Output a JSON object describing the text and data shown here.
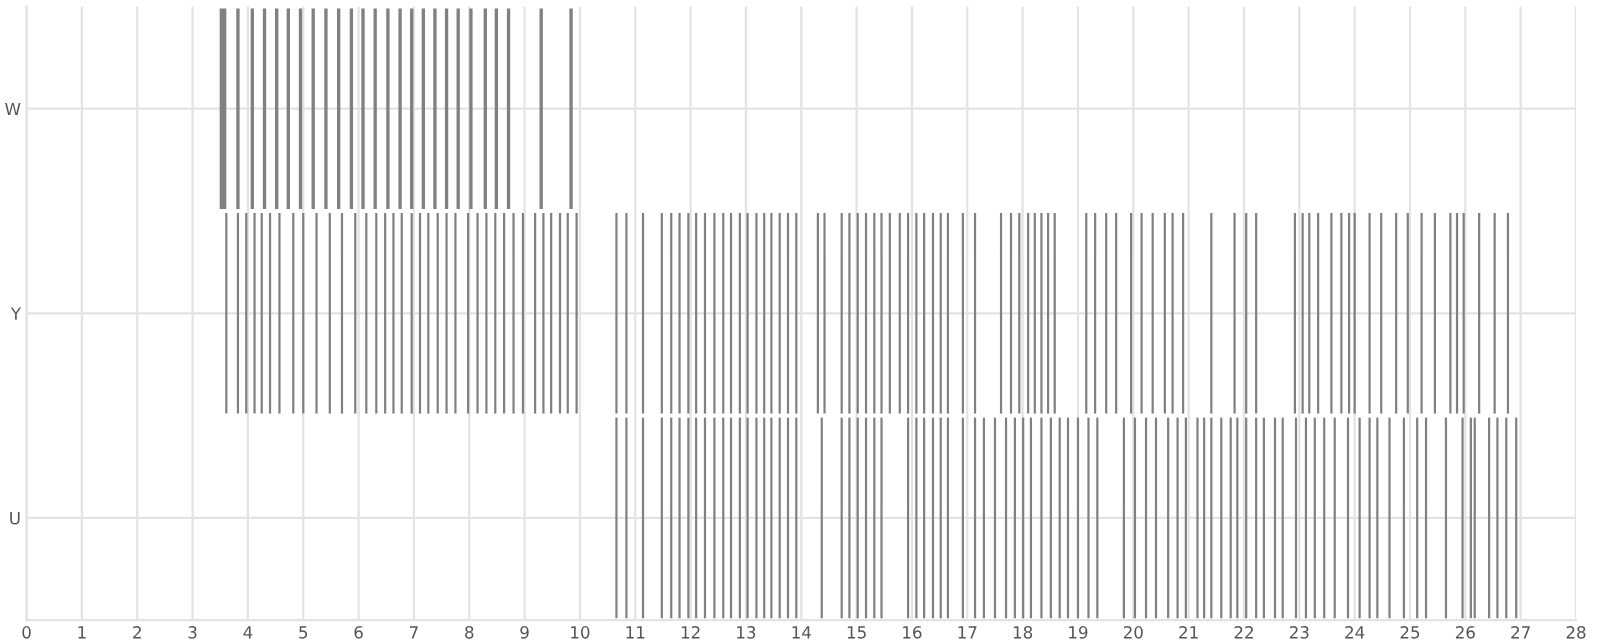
{
  "chart_data": {
    "type": "bar",
    "orientation": "horizontal",
    "grid": true,
    "xlim": [
      0,
      28
    ],
    "xticks": [
      0,
      1,
      2,
      3,
      4,
      5,
      6,
      7,
      8,
      9,
      10,
      11,
      12,
      13,
      14,
      15,
      16,
      17,
      18,
      19,
      20,
      21,
      22,
      23,
      24,
      25,
      26,
      27,
      28
    ],
    "categories": [
      "W",
      "Y",
      "U"
    ],
    "series": [
      {
        "color": "#808080",
        "x": [
          "W",
          "W",
          "W",
          "W",
          "W",
          "W",
          "W",
          "W",
          "W",
          "W",
          "W",
          "W",
          "W",
          "W",
          "W",
          "W",
          "W",
          "W",
          "W",
          "W",
          "W",
          "W",
          "W",
          "W",
          "W",
          "W"
        ],
        "base": [
          3.49,
          3.79,
          4.05,
          4.27,
          4.49,
          4.7,
          4.92,
          5.15,
          5.38,
          5.61,
          5.84,
          6.05,
          6.27,
          6.5,
          6.72,
          6.93,
          7.14,
          7.35,
          7.56,
          7.77,
          8.0,
          8.26,
          8.46,
          8.68,
          9.27,
          9.81
        ],
        "values": [
          0.12,
          0.06,
          0.06,
          0.06,
          0.06,
          0.06,
          0.06,
          0.06,
          0.06,
          0.06,
          0.06,
          0.06,
          0.06,
          0.06,
          0.06,
          0.06,
          0.06,
          0.06,
          0.06,
          0.06,
          0.06,
          0.06,
          0.06,
          0.06,
          0.06,
          0.06
        ]
      },
      {
        "color": "#808080",
        "x": [
          "Y",
          "Y",
          "Y",
          "Y",
          "Y",
          "Y",
          "Y",
          "Y",
          "Y",
          "Y",
          "Y",
          "Y",
          "Y",
          "Y",
          "Y",
          "Y",
          "Y",
          "Y",
          "Y",
          "Y",
          "Y",
          "Y",
          "Y",
          "Y",
          "Y",
          "Y",
          "Y",
          "Y",
          "Y",
          "Y",
          "Y",
          "Y",
          "Y",
          "Y",
          "Y",
          "Y",
          "Y",
          "Y",
          "Y",
          "Y",
          "Y",
          "Y",
          "Y",
          "Y",
          "Y",
          "Y",
          "Y",
          "Y",
          "Y",
          "Y",
          "Y",
          "Y",
          "Y",
          "Y",
          "Y",
          "Y",
          "Y",
          "Y",
          "Y",
          "Y",
          "Y",
          "Y",
          "Y",
          "Y",
          "Y",
          "Y",
          "Y",
          "Y",
          "Y",
          "Y",
          "Y",
          "Y",
          "Y",
          "Y",
          "Y",
          "Y",
          "Y",
          "Y",
          "Y",
          "Y",
          "Y",
          "Y",
          "Y",
          "Y",
          "Y",
          "Y",
          "Y",
          "Y",
          "Y",
          "Y",
          "Y",
          "Y",
          "Y",
          "Y",
          "Y",
          "Y",
          "Y",
          "Y",
          "Y",
          "Y",
          "Y",
          "Y",
          "Y",
          "Y",
          "Y",
          "Y",
          "Y",
          "Y",
          "Y",
          "Y",
          "Y",
          "Y",
          "Y",
          "Y",
          "Y",
          "Y",
          "Y"
        ],
        "base": [
          3.59,
          3.8,
          3.95,
          4.1,
          4.23,
          4.38,
          4.55,
          4.8,
          4.98,
          5.22,
          5.46,
          5.68,
          5.92,
          6.12,
          6.3,
          6.46,
          6.61,
          6.76,
          6.94,
          7.09,
          7.24,
          7.41,
          7.57,
          7.73,
          7.96,
          8.13,
          8.29,
          8.45,
          8.61,
          8.78,
          8.95,
          9.17,
          9.32,
          9.46,
          9.62,
          9.76,
          9.92,
          10.64,
          10.82,
          11.12,
          11.46,
          11.63,
          11.78,
          11.94,
          12.08,
          12.24,
          12.41,
          12.57,
          12.71,
          12.87,
          13.01,
          13.17,
          13.31,
          13.44,
          13.59,
          13.74,
          13.89,
          14.28,
          14.4,
          14.71,
          14.85,
          15.0,
          15.15,
          15.3,
          15.43,
          15.58,
          15.76,
          15.91,
          16.06,
          16.2,
          16.36,
          16.5,
          16.63,
          16.9,
          17.12,
          17.59,
          17.77,
          17.92,
          18.08,
          18.2,
          18.32,
          18.44,
          18.56,
          19.13,
          19.29,
          19.49,
          19.67,
          19.94,
          20.13,
          20.33,
          20.55,
          20.69,
          20.88,
          21.39,
          21.81,
          22.02,
          22.2,
          22.9,
          23.04,
          23.16,
          23.32,
          23.56,
          23.74,
          23.88,
          23.98,
          24.25,
          24.46,
          24.73,
          24.94,
          25.19,
          25.43,
          25.71,
          25.83,
          25.95,
          26.23,
          26.51,
          26.75
        ],
        "values": [
          0.04,
          0.04,
          0.04,
          0.04,
          0.04,
          0.04,
          0.04,
          0.04,
          0.04,
          0.04,
          0.04,
          0.04,
          0.04,
          0.04,
          0.04,
          0.04,
          0.04,
          0.04,
          0.04,
          0.04,
          0.04,
          0.04,
          0.04,
          0.04,
          0.04,
          0.04,
          0.04,
          0.04,
          0.04,
          0.04,
          0.04,
          0.04,
          0.04,
          0.04,
          0.04,
          0.04,
          0.04,
          0.04,
          0.04,
          0.04,
          0.04,
          0.04,
          0.04,
          0.04,
          0.04,
          0.04,
          0.04,
          0.04,
          0.04,
          0.04,
          0.04,
          0.04,
          0.04,
          0.04,
          0.04,
          0.04,
          0.04,
          0.04,
          0.04,
          0.04,
          0.04,
          0.04,
          0.04,
          0.04,
          0.04,
          0.04,
          0.04,
          0.04,
          0.04,
          0.04,
          0.04,
          0.04,
          0.04,
          0.04,
          0.04,
          0.04,
          0.04,
          0.04,
          0.04,
          0.04,
          0.04,
          0.04,
          0.04,
          0.04,
          0.04,
          0.04,
          0.04,
          0.04,
          0.04,
          0.04,
          0.04,
          0.04,
          0.04,
          0.04,
          0.04,
          0.04,
          0.04,
          0.04,
          0.04,
          0.04,
          0.04,
          0.04,
          0.04,
          0.04,
          0.04,
          0.04,
          0.04,
          0.04,
          0.04,
          0.04,
          0.04,
          0.04,
          0.04,
          0.04,
          0.04,
          0.04,
          0.04
        ]
      },
      {
        "color": "#808080",
        "x": [
          "U",
          "U",
          "U",
          "U",
          "U",
          "U",
          "U",
          "U",
          "U",
          "U",
          "U",
          "U",
          "U",
          "U",
          "U",
          "U",
          "U",
          "U",
          "U",
          "U",
          "U",
          "U",
          "U",
          "U",
          "U",
          "U",
          "U",
          "U",
          "U",
          "U",
          "U",
          "U",
          "U",
          "U",
          "U",
          "U",
          "U",
          "U",
          "U",
          "U",
          "U",
          "U",
          "U",
          "U",
          "U",
          "U",
          "U",
          "U",
          "U",
          "U",
          "U",
          "U",
          "U",
          "U",
          "U",
          "U",
          "U",
          "U",
          "U",
          "U",
          "U",
          "U",
          "U",
          "U",
          "U",
          "U",
          "U",
          "U",
          "U",
          "U",
          "U",
          "U",
          "U",
          "U",
          "U",
          "U",
          "U",
          "U",
          "U",
          "U",
          "U",
          "U",
          "U",
          "U",
          "U",
          "U",
          "U"
        ],
        "base": [
          10.64,
          10.82,
          11.12,
          11.46,
          11.63,
          11.78,
          11.94,
          12.08,
          12.24,
          12.41,
          12.57,
          12.71,
          12.87,
          13.01,
          13.17,
          13.31,
          13.44,
          13.59,
          13.74,
          13.89,
          14.35,
          14.71,
          14.85,
          15.0,
          15.15,
          15.3,
          15.43,
          15.91,
          16.06,
          16.2,
          16.36,
          16.5,
          16.63,
          16.9,
          17.12,
          17.28,
          17.48,
          17.68,
          17.84,
          17.99,
          18.13,
          18.32,
          18.49,
          18.65,
          18.8,
          18.98,
          19.17,
          19.33,
          19.81,
          20.01,
          20.21,
          20.39,
          20.61,
          20.78,
          20.93,
          21.14,
          21.26,
          21.39,
          21.57,
          21.74,
          21.86,
          22.02,
          22.2,
          22.34,
          22.54,
          22.68,
          22.92,
          23.1,
          23.26,
          23.43,
          23.62,
          23.86,
          24.07,
          24.25,
          24.39,
          24.61,
          24.87,
          25.11,
          25.27,
          25.63,
          25.93,
          26.08,
          26.15,
          26.41,
          26.56,
          26.72,
          26.9
        ],
        "values": [
          0.04,
          0.04,
          0.04,
          0.04,
          0.04,
          0.04,
          0.04,
          0.04,
          0.04,
          0.04,
          0.04,
          0.04,
          0.04,
          0.04,
          0.04,
          0.04,
          0.04,
          0.04,
          0.04,
          0.04,
          0.04,
          0.04,
          0.04,
          0.04,
          0.04,
          0.04,
          0.04,
          0.04,
          0.04,
          0.04,
          0.04,
          0.04,
          0.04,
          0.04,
          0.04,
          0.04,
          0.04,
          0.04,
          0.04,
          0.04,
          0.04,
          0.04,
          0.04,
          0.04,
          0.04,
          0.04,
          0.04,
          0.04,
          0.04,
          0.04,
          0.04,
          0.04,
          0.04,
          0.04,
          0.04,
          0.04,
          0.04,
          0.04,
          0.04,
          0.04,
          0.04,
          0.04,
          0.04,
          0.04,
          0.04,
          0.04,
          0.04,
          0.04,
          0.04,
          0.04,
          0.04,
          0.04,
          0.04,
          0.04,
          0.04,
          0.04,
          0.04,
          0.04,
          0.04,
          0.04,
          0.04,
          0.04,
          0.04,
          0.04,
          0.04,
          0.04,
          0.04
        ]
      }
    ]
  }
}
